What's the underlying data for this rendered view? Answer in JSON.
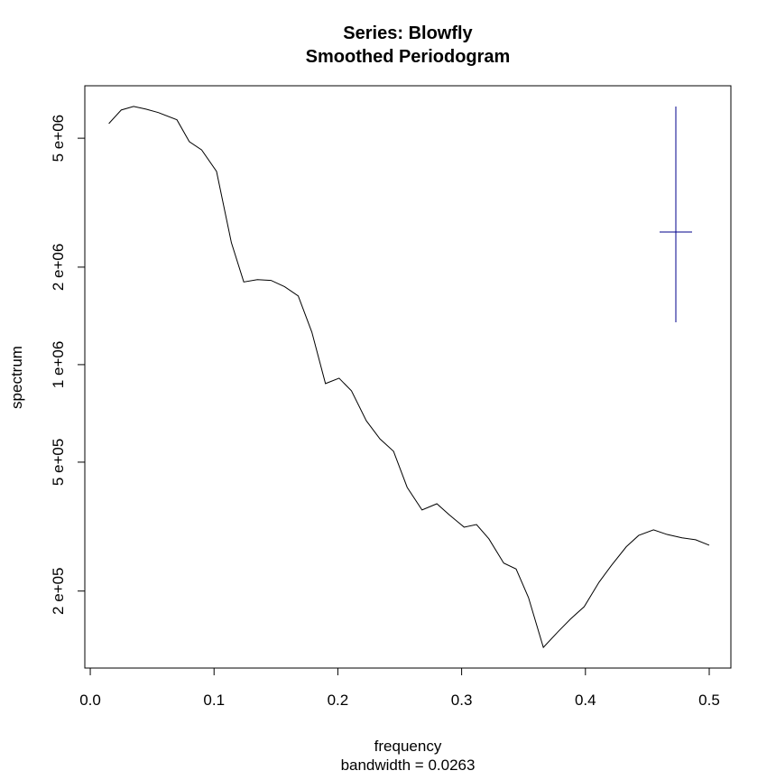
{
  "chart_data": {
    "type": "line",
    "title": "Series: Blowfly",
    "subtitle": "Smoothed Periodogram",
    "x_label": "frequency",
    "x_sublabel": "bandwidth = 0.0263",
    "y_label": "spectrum",
    "log_y": true,
    "color": "#000000",
    "x": [
      0.015,
      0.025,
      0.035,
      0.045,
      0.055,
      0.07,
      0.08,
      0.09,
      0.102,
      0.114,
      0.124,
      0.135,
      0.146,
      0.157,
      0.168,
      0.179,
      0.19,
      0.201,
      0.211,
      0.223,
      0.234,
      0.245,
      0.256,
      0.268,
      0.28,
      0.29,
      0.302,
      0.312,
      0.322,
      0.334,
      0.344,
      0.354,
      0.366,
      0.378,
      0.388,
      0.399,
      0.411,
      0.421,
      0.433,
      0.443,
      0.455,
      0.466,
      0.478,
      0.489,
      0.5
    ],
    "values": [
      5550000,
      6110000,
      6270000,
      6150000,
      6000000,
      5700000,
      4880000,
      4600000,
      3950000,
      2380000,
      1800000,
      1830000,
      1820000,
      1740000,
      1630000,
      1260000,
      874000,
      908000,
      830000,
      671000,
      590000,
      540000,
      418000,
      356000,
      372000,
      344000,
      315000,
      321000,
      290000,
      244000,
      234000,
      191000,
      134000,
      150000,
      164000,
      179000,
      213000,
      240000,
      274000,
      297000,
      309000,
      299000,
      292000,
      288000,
      277000
    ],
    "xlim": [
      -0.0044,
      0.5175
    ],
    "xticks": [
      {
        "value": 0,
        "label": "0.0"
      },
      0.1,
      0.2,
      0.3,
      0.4,
      0.5
    ],
    "ylim": [
      115700,
      7260000
    ],
    "yticks": [
      {
        "value": 200000,
        "label": "2 e+05"
      },
      {
        "value": 500000,
        "label": "5 e+05"
      },
      {
        "value": 1000000,
        "label": "1 e+06"
      },
      {
        "value": 2000000,
        "label": "2 e+06"
      },
      {
        "value": 5000000,
        "label": "5 e+06"
      }
    ]
  }
}
